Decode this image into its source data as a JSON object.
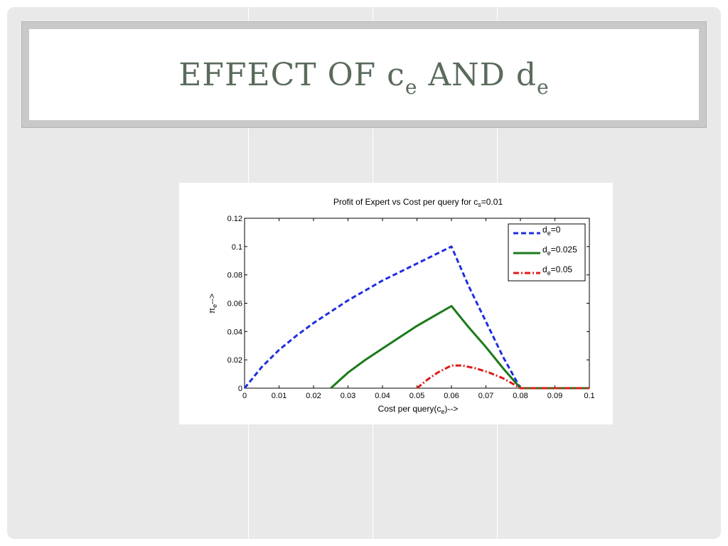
{
  "slide": {
    "title_prefix": "EFFECT OF c",
    "title_sub1": "e",
    "title_mid": " AND d",
    "title_sub2": "e"
  },
  "chart_data": {
    "type": "line",
    "title_prefix": "Profit of Expert vs Cost per query for c",
    "title_sub": "s",
    "title_suffix": "=0.01",
    "xlabel_prefix": "Cost per query(c",
    "xlabel_sub": "e",
    "xlabel_suffix": ")-->",
    "ylabel_prefix": "π",
    "ylabel_sub": "e",
    "ylabel_suffix": "-->",
    "xlim": [
      0,
      0.1
    ],
    "ylim": [
      0,
      0.12
    ],
    "xticks": [
      0,
      0.01,
      0.02,
      0.03,
      0.04,
      0.05,
      0.06,
      0.07,
      0.08,
      0.09,
      0.1
    ],
    "xtick_labels": [
      "0",
      "0.01",
      "0.02",
      "0.03",
      "0.04",
      "0.05",
      "0.06",
      "0.07",
      "0.08",
      "0.09",
      "0.1"
    ],
    "yticks": [
      0,
      0.02,
      0.04,
      0.06,
      0.08,
      0.1,
      0.12
    ],
    "ytick_labels": [
      "0",
      "0.02",
      "0.04",
      "0.06",
      "0.08",
      "0.1",
      "0.12"
    ],
    "grid": false,
    "legend_position": "top-right",
    "series": [
      {
        "legend_prefix": "d",
        "legend_sub": "e",
        "legend_suffix": "=0",
        "color": "#1f2ee0",
        "style": "dashed",
        "x": [
          0,
          0.005,
          0.01,
          0.015,
          0.02,
          0.025,
          0.03,
          0.035,
          0.04,
          0.045,
          0.05,
          0.055,
          0.06,
          0.065,
          0.07,
          0.075,
          0.08,
          0.085,
          0.09,
          0.095,
          0.1
        ],
        "y": [
          0,
          0.015,
          0.027,
          0.037,
          0.046,
          0.054,
          0.062,
          0.069,
          0.076,
          0.082,
          0.088,
          0.094,
          0.1,
          0.072,
          0.047,
          0.022,
          0.0,
          0,
          0,
          0,
          0
        ]
      },
      {
        "legend_prefix": "d",
        "legend_sub": "e",
        "legend_suffix": "=0.025",
        "color": "#1a7a1a",
        "style": "solid",
        "x": [
          0.025,
          0.03,
          0.035,
          0.04,
          0.045,
          0.05,
          0.055,
          0.06,
          0.065,
          0.07,
          0.075,
          0.08,
          0.085,
          0.09,
          0.095,
          0.1
        ],
        "y": [
          0,
          0.011,
          0.02,
          0.028,
          0.036,
          0.044,
          0.051,
          0.058,
          0.043,
          0.029,
          0.014,
          0.0,
          0,
          0,
          0,
          0
        ]
      },
      {
        "legend_prefix": "d",
        "legend_sub": "e",
        "legend_suffix": "=0.05",
        "color": "#e01a1a",
        "style": "dashdot",
        "x": [
          0.05,
          0.053,
          0.056,
          0.06,
          0.063,
          0.067,
          0.071,
          0.075,
          0.08,
          0.085,
          0.09,
          0.095,
          0.1
        ],
        "y": [
          0,
          0.006,
          0.011,
          0.016,
          0.016,
          0.014,
          0.011,
          0.007,
          0.0,
          0,
          0,
          0,
          0
        ]
      }
    ]
  }
}
